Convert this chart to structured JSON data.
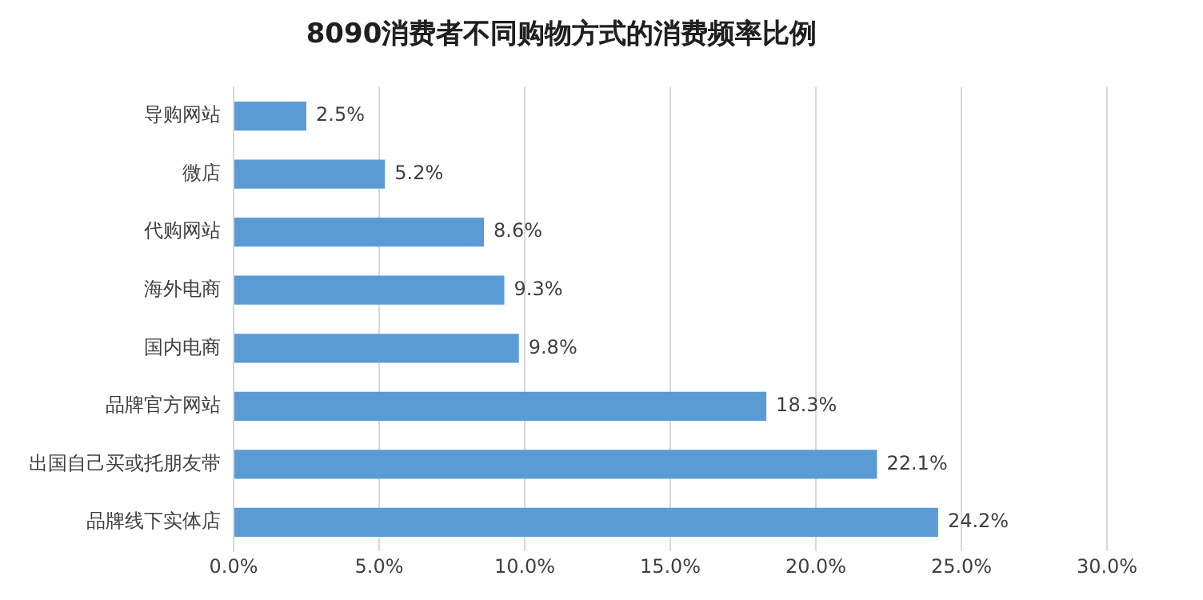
{
  "chart_data": {
    "type": "bar",
    "orientation": "horizontal",
    "title": "8090消费者不同购物方式的消费频率比例",
    "categories": [
      "导购网站",
      "微店",
      "代购网站",
      "海外电商",
      "国内电商",
      "品牌官方网站",
      "出国自己买或托朋友带",
      "品牌线下实体店"
    ],
    "values": [
      2.5,
      5.2,
      8.6,
      9.3,
      9.8,
      18.3,
      22.1,
      24.2
    ],
    "value_labels": [
      "2.5%",
      "5.2%",
      "8.6%",
      "9.3%",
      "9.8%",
      "18.3%",
      "22.1%",
      "24.2%"
    ],
    "color": "#5b9bd5",
    "xlim": [
      0,
      30
    ],
    "xticks": [
      {
        "value": 0,
        "label": "0.0%"
      },
      {
        "value": 5,
        "label": "5.0%"
      },
      {
        "value": 10,
        "label": "10.0%"
      },
      {
        "value": 15,
        "label": "15.0%"
      },
      {
        "value": 20,
        "label": "20.0%"
      },
      {
        "value": 25,
        "label": "25.0%"
      },
      {
        "value": 30,
        "label": "30.0%"
      }
    ],
    "grid": "x",
    "legend": false
  }
}
